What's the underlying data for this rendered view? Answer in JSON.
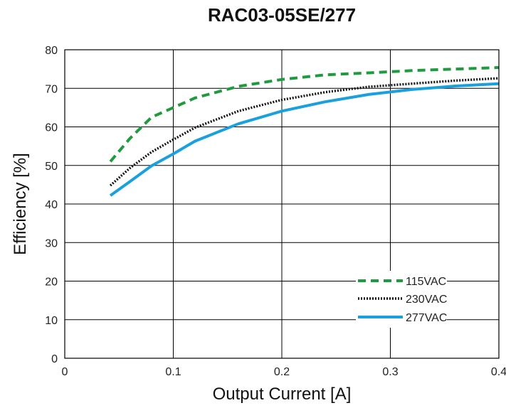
{
  "chart_data": {
    "type": "line",
    "title": "RAC03-05SE/277",
    "xlabel": "Output Current [A]",
    "ylabel": "Efficiency [%]",
    "xlim": [
      0,
      0.4
    ],
    "ylim": [
      0,
      80
    ],
    "x_ticks": [
      0,
      0.1,
      0.2,
      0.3,
      0.4
    ],
    "x_tick_labels": [
      "0",
      "0.1",
      "0.2",
      "0.3",
      "0.4"
    ],
    "y_ticks": [
      0,
      10,
      20,
      30,
      40,
      50,
      60,
      70,
      80
    ],
    "y_tick_labels": [
      "0",
      "10",
      "20",
      "30",
      "40",
      "50",
      "60",
      "70",
      "80"
    ],
    "grid": true,
    "legend_position": "bottom-right",
    "series": [
      {
        "name": "115VAC",
        "color": "#1f9a3f",
        "style": "dashed",
        "x": [
          0.042,
          0.06,
          0.08,
          0.1,
          0.12,
          0.16,
          0.2,
          0.24,
          0.28,
          0.32,
          0.36,
          0.4
        ],
        "y": [
          51,
          57,
          62.5,
          65,
          67.5,
          70.5,
          72.3,
          73.5,
          74,
          74.6,
          75,
          75.4
        ]
      },
      {
        "name": "230VAC",
        "color": "#111111",
        "style": "dotted",
        "x": [
          0.042,
          0.06,
          0.08,
          0.1,
          0.12,
          0.16,
          0.2,
          0.24,
          0.28,
          0.32,
          0.36,
          0.4
        ],
        "y": [
          44.8,
          49.3,
          53.5,
          56.7,
          59.8,
          64.1,
          67,
          69,
          70.4,
          71.2,
          72,
          72.6
        ]
      },
      {
        "name": "277VAC",
        "color": "#1aa0dc",
        "style": "solid",
        "x": [
          0.042,
          0.06,
          0.08,
          0.1,
          0.12,
          0.16,
          0.2,
          0.24,
          0.28,
          0.32,
          0.36,
          0.4
        ],
        "y": [
          42.2,
          45.8,
          49.9,
          53,
          56.3,
          60.8,
          64.1,
          66.5,
          68.4,
          69.7,
          70.6,
          71.2
        ]
      }
    ]
  }
}
